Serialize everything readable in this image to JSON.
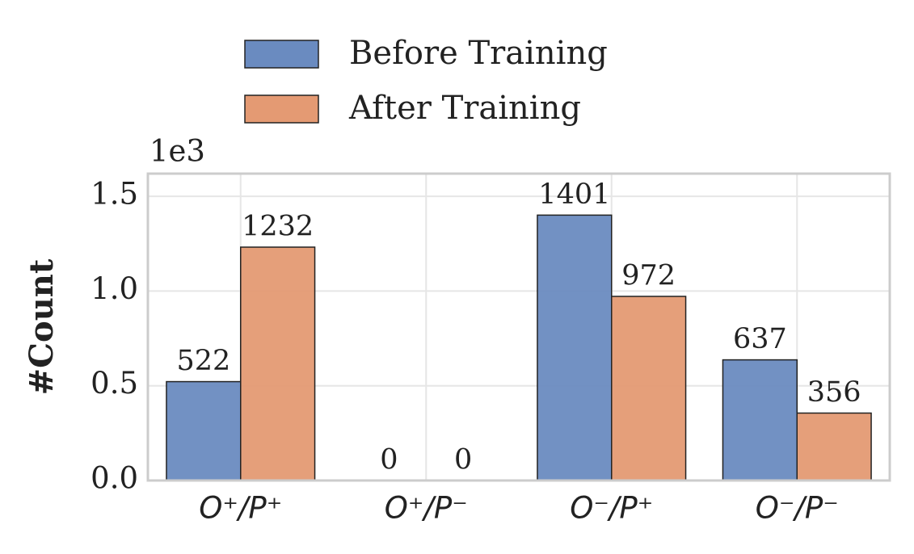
{
  "chart_data": {
    "type": "bar",
    "y_label": "#Count",
    "y_offset_label": "1e3",
    "categories": [
      "O⁺/P⁺",
      "O⁺/P⁻",
      "O⁻/P⁺",
      "O⁻/P⁻"
    ],
    "series": [
      {
        "name": "Before Training",
        "color": "#6a8bc0",
        "values": [
          522,
          0,
          1401,
          637
        ]
      },
      {
        "name": "After Training",
        "color": "#e49a73",
        "values": [
          1232,
          0,
          972,
          356
        ]
      }
    ],
    "ylim": [
      0,
      1620
    ],
    "yticks": [
      {
        "value": 0,
        "label": "0.0"
      },
      {
        "value": 500,
        "label": "0.5"
      },
      {
        "value": 1000,
        "label": "1.0"
      },
      {
        "value": 1500,
        "label": "1.5"
      }
    ],
    "grid": true,
    "legend": "top"
  }
}
